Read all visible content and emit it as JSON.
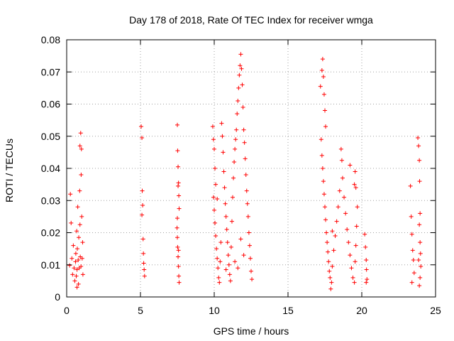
{
  "chart_data": {
    "type": "scatter",
    "title": "Day 178 of 2018, Rate Of TEC Index for receiver wmga",
    "xlabel": "GPS time / hours",
    "ylabel": "ROTI / TECUs",
    "xlim": [
      0,
      25
    ],
    "ylim": [
      0,
      0.08
    ],
    "xticks": [
      0,
      5,
      10,
      15,
      20,
      25
    ],
    "xtick_labels": [
      "0",
      "5",
      "10",
      "15",
      "20",
      "25"
    ],
    "yticks": [
      0,
      0.01,
      0.02,
      0.03,
      0.04,
      0.05,
      0.06,
      0.07,
      0.08
    ],
    "ytick_labels": [
      "0",
      "0.01",
      "0.02",
      "0.03",
      "0.04",
      "0.05",
      "0.06",
      "0.07",
      "0.08"
    ],
    "grid": true,
    "marker": "+",
    "color": "#ff0000",
    "series": [
      {
        "name": "ROTI",
        "points": [
          [
            0.2,
            0.0098
          ],
          [
            0.25,
            0.032
          ],
          [
            0.3,
            0.023
          ],
          [
            0.35,
            0.012
          ],
          [
            0.4,
            0.007
          ],
          [
            0.45,
            0.016
          ],
          [
            0.5,
            0.009
          ],
          [
            0.55,
            0.005
          ],
          [
            0.6,
            0.011
          ],
          [
            0.62,
            0.0135
          ],
          [
            0.65,
            0.0065
          ],
          [
            0.68,
            0.0205
          ],
          [
            0.7,
            0.0085
          ],
          [
            0.72,
            0.015
          ],
          [
            0.75,
            0.028
          ],
          [
            0.78,
            0.0115
          ],
          [
            0.8,
            0.004
          ],
          [
            0.82,
            0.0185
          ],
          [
            0.85,
            0.009
          ],
          [
            0.88,
            0.033
          ],
          [
            0.9,
            0.047
          ],
          [
            0.92,
            0.0125
          ],
          [
            0.95,
            0.051
          ],
          [
            0.97,
            0.0095
          ],
          [
            0.98,
            0.038
          ],
          [
            1.0,
            0.046
          ],
          [
            1.02,
            0.025
          ],
          [
            1.05,
            0.012
          ],
          [
            1.08,
            0.017
          ],
          [
            1.1,
            0.007
          ],
          [
            0.7,
            0.003
          ],
          [
            0.9,
            0.0225
          ],
          [
            5.05,
            0.053
          ],
          [
            5.1,
            0.0495
          ],
          [
            5.12,
            0.033
          ],
          [
            5.15,
            0.0285
          ],
          [
            5.18,
            0.018
          ],
          [
            5.2,
            0.0135
          ],
          [
            5.22,
            0.0105
          ],
          [
            5.25,
            0.0085
          ],
          [
            5.28,
            0.0065
          ],
          [
            5.1,
            0.0255
          ],
          [
            7.5,
            0.0535
          ],
          [
            7.52,
            0.0455
          ],
          [
            7.55,
            0.0405
          ],
          [
            7.58,
            0.0355
          ],
          [
            7.6,
            0.0315
          ],
          [
            7.62,
            0.0275
          ],
          [
            7.48,
            0.0215
          ],
          [
            7.5,
            0.0185
          ],
          [
            7.52,
            0.0155
          ],
          [
            7.55,
            0.0125
          ],
          [
            7.58,
            0.0095
          ],
          [
            7.6,
            0.0065
          ],
          [
            7.62,
            0.0045
          ],
          [
            7.5,
            0.0245
          ],
          [
            7.55,
            0.0345
          ],
          [
            7.58,
            0.0145
          ],
          [
            9.9,
            0.053
          ],
          [
            9.95,
            0.049
          ],
          [
            10.0,
            0.046
          ],
          [
            10.05,
            0.04
          ],
          [
            10.1,
            0.035
          ],
          [
            9.95,
            0.031
          ],
          [
            10.0,
            0.027
          ],
          [
            10.05,
            0.023
          ],
          [
            10.1,
            0.019
          ],
          [
            10.15,
            0.015
          ],
          [
            10.2,
            0.012
          ],
          [
            10.25,
            0.009
          ],
          [
            10.3,
            0.006
          ],
          [
            10.35,
            0.0045
          ],
          [
            10.4,
            0.011
          ],
          [
            10.45,
            0.017
          ],
          [
            10.5,
            0.054
          ],
          [
            10.55,
            0.05
          ],
          [
            10.6,
            0.045
          ],
          [
            10.65,
            0.039
          ],
          [
            10.7,
            0.034
          ],
          [
            10.75,
            0.029
          ],
          [
            10.8,
            0.025
          ],
          [
            10.85,
            0.021
          ],
          [
            10.9,
            0.017
          ],
          [
            10.95,
            0.013
          ],
          [
            11.0,
            0.01
          ],
          [
            11.05,
            0.007
          ],
          [
            11.1,
            0.005
          ],
          [
            11.15,
            0.0155
          ],
          [
            11.2,
            0.0235
          ],
          [
            11.25,
            0.031
          ],
          [
            11.3,
            0.037
          ],
          [
            11.35,
            0.042
          ],
          [
            11.4,
            0.046
          ],
          [
            11.45,
            0.049
          ],
          [
            11.5,
            0.052
          ],
          [
            11.55,
            0.057
          ],
          [
            11.6,
            0.061
          ],
          [
            11.65,
            0.065
          ],
          [
            11.7,
            0.069
          ],
          [
            11.75,
            0.072
          ],
          [
            11.8,
            0.0755
          ],
          [
            11.85,
            0.071
          ],
          [
            11.9,
            0.066
          ],
          [
            11.95,
            0.059
          ],
          [
            12.0,
            0.052
          ],
          [
            12.05,
            0.048
          ],
          [
            12.1,
            0.043
          ],
          [
            12.15,
            0.038
          ],
          [
            12.2,
            0.033
          ],
          [
            12.25,
            0.029
          ],
          [
            12.3,
            0.025
          ],
          [
            12.35,
            0.02
          ],
          [
            12.4,
            0.016
          ],
          [
            12.45,
            0.012
          ],
          [
            12.5,
            0.008
          ],
          [
            12.55,
            0.0055
          ],
          [
            11.4,
            0.011
          ],
          [
            11.6,
            0.009
          ],
          [
            11.8,
            0.018
          ],
          [
            12.0,
            0.013
          ],
          [
            10.8,
            0.0085
          ],
          [
            10.2,
            0.0305
          ],
          [
            17.2,
            0.0655
          ],
          [
            17.3,
            0.0705
          ],
          [
            17.35,
            0.074
          ],
          [
            17.4,
            0.0685
          ],
          [
            17.45,
            0.063
          ],
          [
            17.5,
            0.058
          ],
          [
            17.55,
            0.053
          ],
          [
            17.25,
            0.049
          ],
          [
            17.3,
            0.044
          ],
          [
            17.35,
            0.04
          ],
          [
            17.4,
            0.036
          ],
          [
            17.45,
            0.032
          ],
          [
            17.5,
            0.028
          ],
          [
            17.55,
            0.024
          ],
          [
            17.6,
            0.02
          ],
          [
            17.65,
            0.017
          ],
          [
            17.7,
            0.014
          ],
          [
            17.75,
            0.011
          ],
          [
            17.8,
            0.008
          ],
          [
            17.85,
            0.006
          ],
          [
            17.9,
            0.0025
          ],
          [
            17.95,
            0.0045
          ],
          [
            18.0,
            0.0095
          ],
          [
            18.1,
            0.0145
          ],
          [
            18.2,
            0.019
          ],
          [
            18.3,
            0.0235
          ],
          [
            18.4,
            0.028
          ],
          [
            18.5,
            0.033
          ],
          [
            18.6,
            0.046
          ],
          [
            18.65,
            0.0425
          ],
          [
            18.7,
            0.037
          ],
          [
            18.8,
            0.031
          ],
          [
            18.9,
            0.026
          ],
          [
            19.0,
            0.021
          ],
          [
            19.1,
            0.017
          ],
          [
            19.2,
            0.013
          ],
          [
            19.3,
            0.009
          ],
          [
            19.4,
            0.006
          ],
          [
            19.5,
            0.0045
          ],
          [
            19.55,
            0.011
          ],
          [
            19.6,
            0.016
          ],
          [
            19.65,
            0.022
          ],
          [
            19.7,
            0.028
          ],
          [
            19.6,
            0.034
          ],
          [
            19.55,
            0.039
          ],
          [
            19.5,
            0.035
          ],
          [
            19.2,
            0.041
          ],
          [
            18.0,
            0.0205
          ],
          [
            20.2,
            0.0195
          ],
          [
            20.25,
            0.0155
          ],
          [
            20.3,
            0.0115
          ],
          [
            20.32,
            0.0085
          ],
          [
            20.35,
            0.0055
          ],
          [
            20.3,
            0.0045
          ],
          [
            23.3,
            0.0345
          ],
          [
            23.35,
            0.025
          ],
          [
            23.4,
            0.0195
          ],
          [
            23.45,
            0.0145
          ],
          [
            23.5,
            0.0115
          ],
          [
            23.55,
            0.0075
          ],
          [
            23.4,
            0.0045
          ],
          [
            23.8,
            0.0495
          ],
          [
            23.85,
            0.047
          ],
          [
            23.9,
            0.0425
          ],
          [
            23.92,
            0.036
          ],
          [
            23.95,
            0.026
          ],
          [
            23.9,
            0.0225
          ],
          [
            23.95,
            0.017
          ],
          [
            23.98,
            0.0135
          ],
          [
            24.0,
            0.0095
          ],
          [
            23.95,
            0.006
          ],
          [
            23.9,
            0.0035
          ],
          [
            23.85,
            0.0115
          ]
        ]
      }
    ]
  }
}
